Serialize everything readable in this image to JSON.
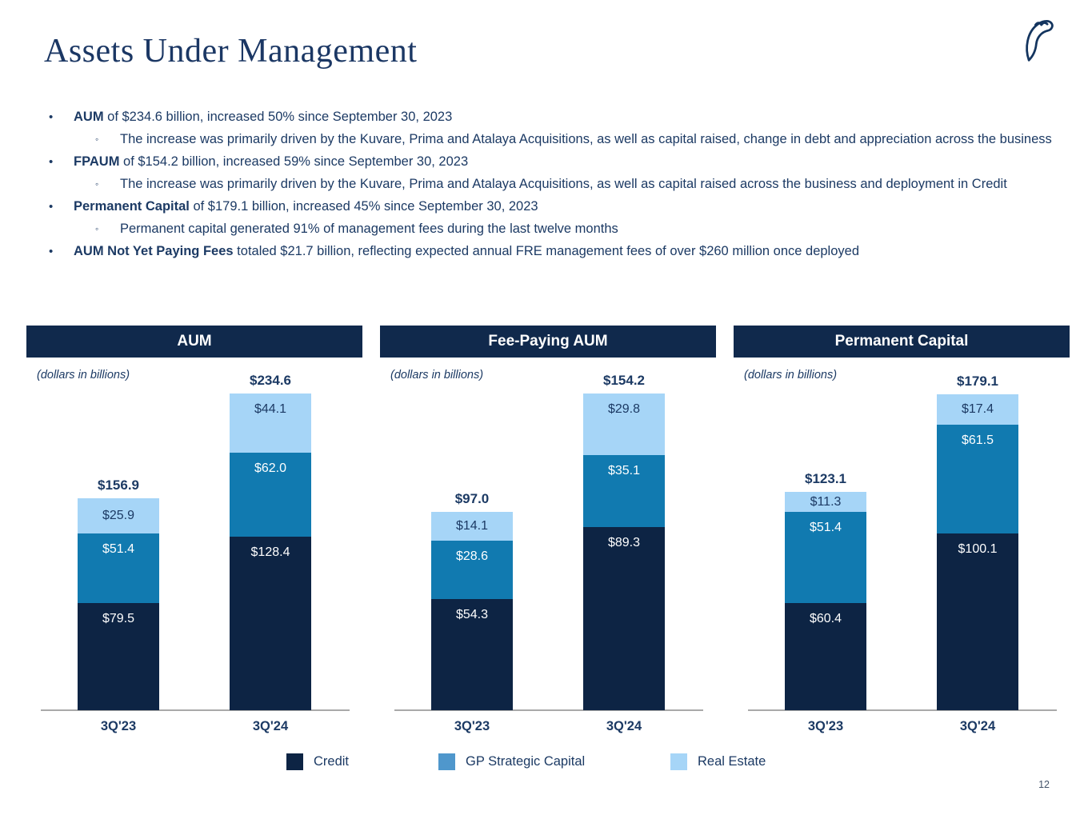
{
  "page": {
    "title": "Assets Under Management",
    "page_number": "12"
  },
  "colors": {
    "text_navy": "#1c3a64",
    "header_bg": "#10294c",
    "credit": "#0d2444",
    "gp_strategic_capital": "#117ab0",
    "real_estate": "#a6d5f7",
    "legend_gp_swatch": "#4f97cc",
    "axis_gray": "#a9a9a9",
    "logo_navy": "#14355f"
  },
  "bullets": [
    {
      "lead": "AUM",
      "text": " of $234.6 billion, increased 50% since September 30, 2023",
      "subs": [
        "The increase was primarily driven by the Kuvare, Prima and Atalaya Acquisitions, as well as capital raised, change in debt and appreciation across the business"
      ]
    },
    {
      "lead": "FPAUM",
      "text": " of $154.2 billion, increased 59% since September 30, 2023",
      "subs": [
        "The increase was primarily driven by the Kuvare, Prima and Atalaya Acquisitions, as well as capital raised across the business and deployment in Credit"
      ]
    },
    {
      "lead": "Permanent Capital",
      "text": " of $179.1 billion, increased 45% since September 30, 2023",
      "subs": [
        "Permanent capital generated 91% of management fees during the last twelve months"
      ]
    },
    {
      "lead": "AUM Not Yet Paying Fees",
      "text": " totaled $21.7 billion, reflecting expected annual FRE management fees of over $260 million once deployed",
      "subs": []
    }
  ],
  "chart_data": [
    {
      "type": "bar",
      "stacked": true,
      "title": "AUM",
      "unit_label": "(dollars in billions)",
      "categories": [
        "3Q'23",
        "3Q'24"
      ],
      "totals": [
        {
          "label": "$156.9",
          "value": 156.9
        },
        {
          "label": "$234.6",
          "value": 234.6
        }
      ],
      "series": [
        {
          "name": "Credit",
          "values": [
            79.5,
            128.4
          ],
          "labels": [
            "$79.5",
            "$128.4"
          ]
        },
        {
          "name": "GP Strategic Capital",
          "values": [
            51.4,
            62.0
          ],
          "labels": [
            "$51.4",
            "$62.0"
          ]
        },
        {
          "name": "Real Estate",
          "values": [
            25.9,
            44.1
          ],
          "labels": [
            "$25.9",
            "$44.1"
          ]
        }
      ],
      "legend_position": "bottom",
      "grid": false
    },
    {
      "type": "bar",
      "stacked": true,
      "title": "Fee-Paying AUM",
      "unit_label": "(dollars in billions)",
      "categories": [
        "3Q'23",
        "3Q'24"
      ],
      "totals": [
        {
          "label": "$97.0",
          "value": 97.0
        },
        {
          "label": "$154.2",
          "value": 154.2
        }
      ],
      "series": [
        {
          "name": "Credit",
          "values": [
            54.3,
            89.3
          ],
          "labels": [
            "$54.3",
            "$89.3"
          ]
        },
        {
          "name": "GP Strategic Capital",
          "values": [
            28.6,
            35.1
          ],
          "labels": [
            "$28.6",
            "$35.1"
          ]
        },
        {
          "name": "Real Estate",
          "values": [
            14.1,
            29.8
          ],
          "labels": [
            "$14.1",
            "$29.8"
          ]
        }
      ],
      "legend_position": "bottom",
      "grid": false
    },
    {
      "type": "bar",
      "stacked": true,
      "title": "Permanent Capital",
      "unit_label": "(dollars in billions)",
      "categories": [
        "3Q'23",
        "3Q'24"
      ],
      "totals": [
        {
          "label": "$123.1",
          "value": 123.1
        },
        {
          "label": "$179.1",
          "value": 179.1
        }
      ],
      "series": [
        {
          "name": "Credit",
          "values": [
            60.4,
            100.1
          ],
          "labels": [
            "$60.4",
            "$100.1"
          ]
        },
        {
          "name": "GP Strategic Capital",
          "values": [
            51.4,
            61.5
          ],
          "labels": [
            "$51.4",
            "$61.5"
          ]
        },
        {
          "name": "Real Estate",
          "values": [
            11.3,
            17.4
          ],
          "labels": [
            "$11.3",
            "$17.4"
          ]
        }
      ],
      "legend_position": "bottom",
      "grid": false
    }
  ],
  "legend": [
    {
      "label": "Credit",
      "color_key": "credit"
    },
    {
      "label": "GP Strategic Capital",
      "color_key": "legend_gp_swatch"
    },
    {
      "label": "Real Estate",
      "color_key": "real_estate"
    }
  ]
}
